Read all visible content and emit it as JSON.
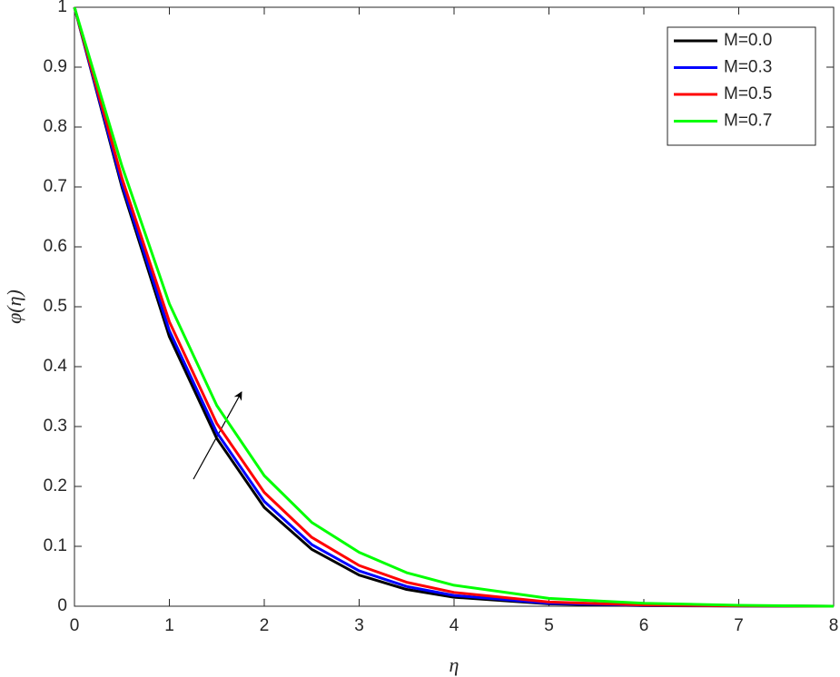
{
  "chart_data": {
    "type": "line",
    "xlabel": "η",
    "ylabel": "φ(η)",
    "x": [
      0,
      0.5,
      1,
      1.5,
      2,
      2.5,
      3,
      3.5,
      4,
      5,
      6,
      7,
      8
    ],
    "series": [
      {
        "name": "M=0.0",
        "color": "#000000",
        "values": [
          1,
          0.7,
          0.45,
          0.28,
          0.165,
          0.095,
          0.052,
          0.028,
          0.015,
          0.004,
          0.001,
          0.0003,
          0
        ]
      },
      {
        "name": "M=0.3",
        "color": "#0000ff",
        "values": [
          1,
          0.705,
          0.46,
          0.29,
          0.175,
          0.103,
          0.059,
          0.033,
          0.018,
          0.005,
          0.0015,
          0.0004,
          0
        ]
      },
      {
        "name": "M=0.5",
        "color": "#ff0000",
        "values": [
          1,
          0.715,
          0.475,
          0.305,
          0.19,
          0.115,
          0.068,
          0.04,
          0.023,
          0.007,
          0.002,
          0.0006,
          0
        ]
      },
      {
        "name": "M=0.7",
        "color": "#00ff00",
        "values": [
          1,
          0.735,
          0.505,
          0.335,
          0.218,
          0.14,
          0.09,
          0.056,
          0.035,
          0.013,
          0.005,
          0.0015,
          0
        ]
      }
    ],
    "xlim": [
      0,
      8
    ],
    "ylim": [
      0,
      1
    ],
    "xticks": [
      0,
      1,
      2,
      3,
      4,
      5,
      6,
      7,
      8
    ],
    "yticks": [
      0,
      0.1,
      0.2,
      0.3,
      0.4,
      0.5,
      0.6,
      0.7,
      0.8,
      0.9,
      1
    ],
    "legend": "upper-right"
  }
}
